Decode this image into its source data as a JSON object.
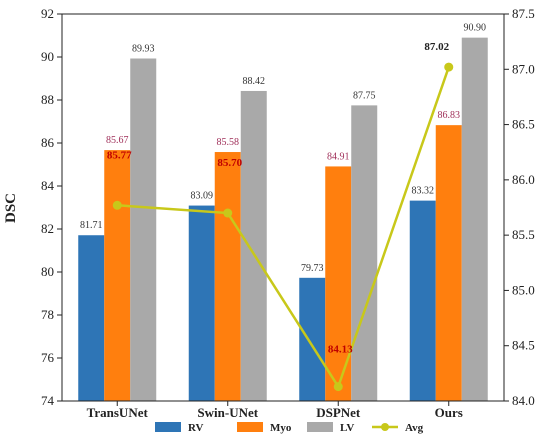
{
  "chart_data": {
    "type": "bar",
    "categories": [
      "TransUNet",
      "Swin-UNet",
      "DSPNet",
      "Ours"
    ],
    "series": [
      {
        "name": "RV",
        "values": [
          81.71,
          83.09,
          79.73,
          83.32
        ],
        "color": "#2e75b6"
      },
      {
        "name": "Myo",
        "values": [
          85.67,
          85.58,
          84.91,
          86.83
        ],
        "color": "#ff7f0e"
      },
      {
        "name": "LV",
        "values": [
          89.93,
          88.42,
          87.75,
          90.9
        ],
        "color": "#a9a9a9"
      }
    ],
    "line_series": {
      "name": "Avg",
      "values": [
        85.77,
        85.7,
        84.13,
        87.02
      ],
      "color": "#c8c81a",
      "axis": "right"
    },
    "ylabel": "DSC",
    "ylim": [
      74,
      92
    ],
    "y_ticks": [
      "74",
      "76",
      "78",
      "80",
      "82",
      "84",
      "86",
      "88",
      "90",
      "92"
    ],
    "y2lim": [
      84.0,
      87.5
    ],
    "y2_ticks": [
      "84.0",
      "84.5",
      "85.0",
      "85.5",
      "86.0",
      "86.5",
      "87.0",
      "87.5"
    ],
    "bar_labels": [
      [
        "81.71",
        "85.67",
        "89.93"
      ],
      [
        "83.09",
        "85.58",
        "88.42"
      ],
      [
        "79.73",
        "84.91",
        "87.75"
      ],
      [
        "83.32",
        "86.83",
        "90.90"
      ]
    ],
    "avg_labels": [
      "85.77",
      "85.70",
      "84.13",
      "87.02"
    ],
    "legend": {
      "position": "bottom-center",
      "items": [
        "RV",
        "Myo",
        "LV",
        "Avg"
      ]
    },
    "grid": false
  }
}
